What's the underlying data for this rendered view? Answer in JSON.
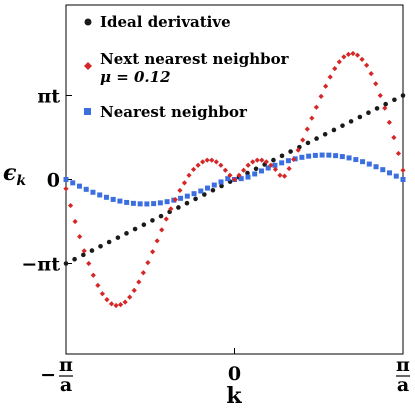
{
  "chart_data": {
    "type": "scatter",
    "title": "",
    "xlabel": "k",
    "ylabel": "ϵ",
    "ylabel_subscript": "k",
    "x_domain": [
      -1,
      1
    ],
    "y_domain": [
      -1.55,
      1.55
    ],
    "x_ticks": [
      {
        "value": -1,
        "label": "−",
        "frac_num": "π",
        "frac_den": "a"
      },
      {
        "value": 0,
        "label": "0"
      },
      {
        "value": 1,
        "label": "",
        "frac_num": "π",
        "frac_den": "a"
      }
    ],
    "y_ticks": [
      {
        "value": 1,
        "label": "πt"
      },
      {
        "value": 0,
        "label": "0"
      },
      {
        "value": -1,
        "label": "−πt"
      }
    ],
    "grid": false,
    "legend_position": "top-left",
    "series": [
      {
        "name": "Ideal derivative",
        "marker": "circle",
        "color": "#1a1a1a",
        "x": [
          -1,
          -0.949,
          -0.897,
          -0.846,
          -0.795,
          -0.744,
          -0.692,
          -0.641,
          -0.59,
          -0.538,
          -0.487,
          -0.436,
          -0.385,
          -0.333,
          -0.282,
          -0.231,
          -0.179,
          -0.128,
          -0.077,
          -0.026,
          0.026,
          0.077,
          0.128,
          0.179,
          0.231,
          0.282,
          0.333,
          0.385,
          0.436,
          0.487,
          0.538,
          0.59,
          0.641,
          0.692,
          0.744,
          0.795,
          0.846,
          0.897,
          0.949,
          1
        ],
        "y": [
          -1,
          -0.949,
          -0.897,
          -0.846,
          -0.795,
          -0.744,
          -0.692,
          -0.641,
          -0.59,
          -0.538,
          -0.487,
          -0.436,
          -0.385,
          -0.333,
          -0.282,
          -0.231,
          -0.179,
          -0.128,
          -0.077,
          -0.026,
          0.026,
          0.077,
          0.128,
          0.179,
          0.231,
          0.282,
          0.333,
          0.385,
          0.436,
          0.487,
          0.538,
          0.59,
          0.641,
          0.692,
          0.744,
          0.795,
          0.846,
          0.897,
          0.949,
          1
        ]
      },
      {
        "name": "Nearest neighbor",
        "marker": "square",
        "color": "#3b6fe0",
        "x": [
          -1,
          -0.96,
          -0.92,
          -0.88,
          -0.84,
          -0.8,
          -0.76,
          -0.72,
          -0.68,
          -0.64,
          -0.6,
          -0.56,
          -0.52,
          -0.48,
          -0.44,
          -0.4,
          -0.36,
          -0.32,
          -0.28,
          -0.24,
          -0.2,
          -0.16,
          -0.12,
          -0.08,
          -0.04,
          0,
          0.04,
          0.08,
          0.12,
          0.16,
          0.2,
          0.24,
          0.28,
          0.32,
          0.36,
          0.4,
          0.44,
          0.48,
          0.52,
          0.56,
          0.6,
          0.64,
          0.68,
          0.72,
          0.76,
          0.8,
          0.84,
          0.88,
          0.92,
          0.96,
          1
        ],
        "y": [
          0,
          -0.04,
          -0.079,
          -0.117,
          -0.152,
          -0.184,
          -0.212,
          -0.237,
          -0.257,
          -0.273,
          -0.284,
          -0.29,
          -0.291,
          -0.287,
          -0.278,
          -0.264,
          -0.246,
          -0.224,
          -0.198,
          -0.169,
          -0.137,
          -0.102,
          -0.066,
          -0.029,
          0.01,
          0,
          0.01,
          0.029,
          0.066,
          0.102,
          0.137,
          0.169,
          0.198,
          0.224,
          0.246,
          0.264,
          0.278,
          0.287,
          0.291,
          0.29,
          0.284,
          0.273,
          0.257,
          0.237,
          0.212,
          0.184,
          0.152,
          0.117,
          0.079,
          0.04,
          0
        ]
      },
      {
        "name": "Next nearest neighbor",
        "name_line2": "μ = 0.12",
        "marker": "diamond",
        "color": "#d62728",
        "x": [
          -1,
          -0.973,
          -0.946,
          -0.919,
          -0.892,
          -0.865,
          -0.838,
          -0.811,
          -0.784,
          -0.757,
          -0.73,
          -0.703,
          -0.676,
          -0.649,
          -0.622,
          -0.595,
          -0.568,
          -0.541,
          -0.514,
          -0.486,
          -0.459,
          -0.432,
          -0.405,
          -0.378,
          -0.351,
          -0.324,
          -0.297,
          -0.27,
          -0.243,
          -0.216,
          -0.189,
          -0.162,
          -0.135,
          -0.108,
          -0.081,
          -0.054,
          -0.027,
          0,
          0.027,
          0.054,
          0.081,
          0.108,
          0.135,
          0.162,
          0.189,
          0.216,
          0.243,
          0.27,
          0.297,
          0.324,
          0.351,
          0.378,
          0.405,
          0.432,
          0.459,
          0.486,
          0.514,
          0.541,
          0.568,
          0.595,
          0.622,
          0.649,
          0.676,
          0.703,
          0.73,
          0.757,
          0.784,
          0.811,
          0.838,
          0.865,
          0.892,
          0.919,
          0.946,
          0.973,
          1
        ],
        "y": [
          -0.11,
          -0.31,
          -0.5,
          -0.68,
          -0.85,
          -1.0,
          -1.14,
          -1.26,
          -1.36,
          -1.43,
          -1.48,
          -1.5,
          -1.49,
          -1.46,
          -1.4,
          -1.32,
          -1.22,
          -1.11,
          -0.99,
          -0.86,
          -0.73,
          -0.6,
          -0.47,
          -0.35,
          -0.24,
          -0.13,
          -0.04,
          0.05,
          0.12,
          0.17,
          0.21,
          0.23,
          0.23,
          0.21,
          0.17,
          0.11,
          0.05,
          0,
          0.05,
          0.11,
          0.17,
          0.21,
          0.23,
          0.23,
          0.21,
          0.17,
          0.12,
          0.05,
          0.04,
          0.13,
          0.24,
          0.35,
          0.47,
          0.6,
          0.73,
          0.86,
          0.99,
          1.11,
          1.22,
          1.32,
          1.4,
          1.46,
          1.49,
          1.5,
          1.48,
          1.43,
          1.36,
          1.26,
          1.14,
          1.0,
          0.85,
          0.68,
          0.5,
          0.31,
          0.11
        ]
      }
    ]
  }
}
